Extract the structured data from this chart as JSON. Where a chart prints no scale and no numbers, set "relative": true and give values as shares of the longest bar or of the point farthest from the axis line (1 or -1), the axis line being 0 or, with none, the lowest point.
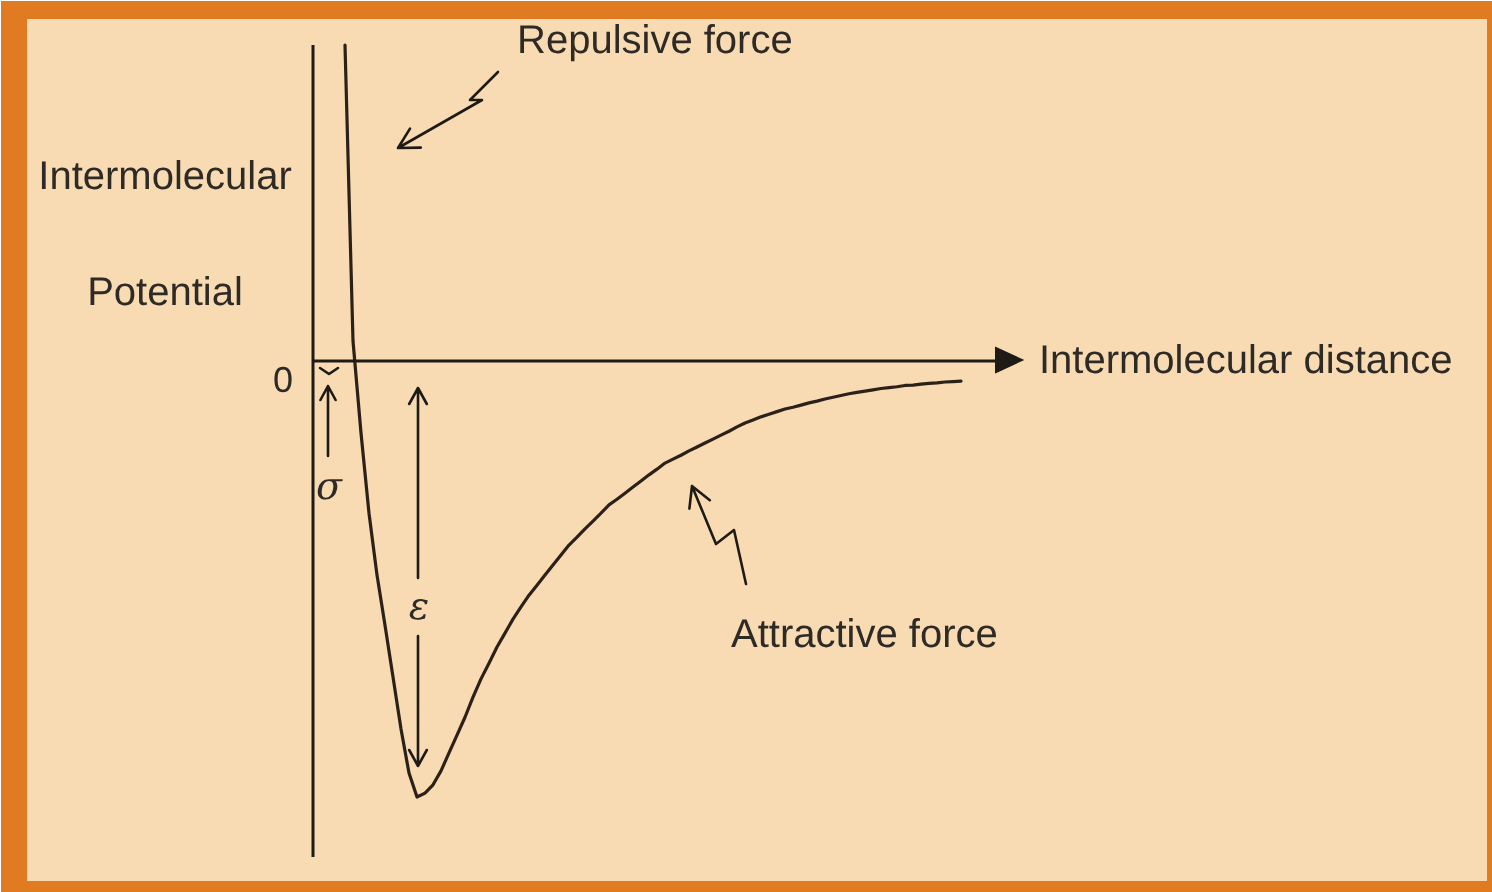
{
  "chart_data": {
    "type": "line",
    "relative": true,
    "xlabel": "Intermolecular distance",
    "ylabel": "Intermolecular Potential",
    "color": "#2b2118",
    "annotations": [
      "Repulsive force",
      "Attractive force",
      "σ",
      "ε",
      "0"
    ],
    "categories": [
      null,
      null,
      null,
      null,
      null,
      null,
      null,
      null,
      null,
      null,
      null,
      null,
      null,
      null,
      null,
      null,
      null,
      null,
      null,
      null,
      null,
      null,
      null,
      null,
      null,
      null,
      null,
      null,
      null,
      null,
      null,
      null,
      null,
      null,
      null,
      null,
      null,
      null,
      null,
      null,
      null,
      null,
      null,
      null,
      null,
      null,
      null,
      null,
      null,
      null,
      null,
      null,
      null,
      null,
      null,
      null,
      null,
      null,
      null,
      null,
      null,
      null,
      null,
      null,
      null,
      null,
      null,
      null,
      null,
      null,
      null,
      null,
      null,
      null,
      null,
      null,
      null,
      null
    ],
    "values": [
      0.725,
      0.046,
      -0.165,
      -0.349,
      -0.491,
      -0.606,
      -0.725,
      -0.844,
      -0.945,
      -1.0,
      -0.991,
      -0.972,
      -0.94,
      -0.899,
      -0.858,
      -0.817,
      -0.771,
      -0.729,
      -0.693,
      -0.656,
      -0.624,
      -0.592,
      -0.564,
      -0.537,
      -0.514,
      -0.491,
      -0.468,
      -0.445,
      -0.422,
      -0.404,
      -0.385,
      -0.367,
      -0.349,
      -0.33,
      -0.317,
      -0.303,
      -0.289,
      -0.275,
      -0.261,
      -0.248,
      -0.234,
      -0.225,
      -0.216,
      -0.206,
      -0.197,
      -0.188,
      -0.179,
      -0.17,
      -0.161,
      -0.151,
      -0.142,
      -0.135,
      -0.128,
      -0.122,
      -0.116,
      -0.11,
      -0.106,
      -0.101,
      -0.096,
      -0.092,
      -0.087,
      -0.083,
      -0.079,
      -0.075,
      -0.072,
      -0.069,
      -0.066,
      -0.063,
      -0.061,
      -0.059,
      -0.056,
      -0.055,
      -0.053,
      -0.051,
      -0.05,
      -0.048,
      -0.047,
      -0.046
    ]
  }
}
